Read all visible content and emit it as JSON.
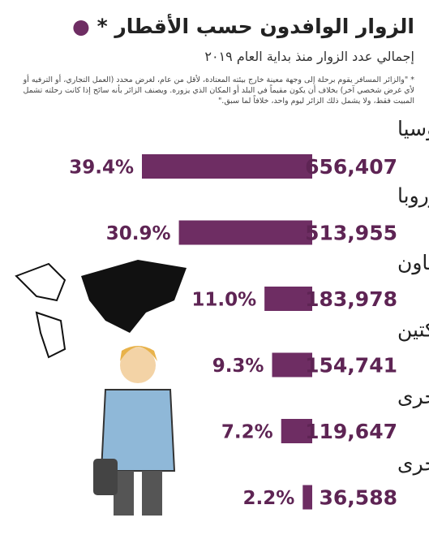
{
  "chart_data": {
    "type": "bar",
    "title": "الزوار الوافدون حسب الأقطار",
    "title_marker": "*",
    "subtitle": "إجمالي عدد الزوار منذ بداية العام ٢٠١٩",
    "footnote": "* \"والزائر المسافر يقوم برحلة إلى وجهة معينة خارج بيئته المعتادة، لأقل من عام، لغرض محدد (العمل التجاري، أو الترفيه أو لأي غرض شخصي آخر) بخلاف أن يكون مقيماً في البلد أو المكان الذي يزوره. ويصنف الزائر بأنه سائح إذا كانت رحلته تشمل المبيت فقط، ولا يشمل ذلك الزائر ليوم واحد، خلافاً لما سبق.\"",
    "categories": [
      "الدول الآسيوية الأخرى وأوقيانوسيا",
      "أوروبا",
      "دول مجلس التعاون",
      "الأمريكتين",
      "الدول العربية الأخرى",
      "الدول الأفريقية الأخرى"
    ],
    "values": [
      656407,
      513955,
      183978,
      154741,
      119647,
      36588
    ],
    "value_labels": [
      "656,407",
      "513,955",
      "183,978",
      "154,741",
      "119,647",
      "36,588"
    ],
    "shares": [
      39.4,
      30.9,
      11.0,
      9.3,
      7.2,
      2.2
    ],
    "share_labels": [
      "39.4%",
      "30.9%",
      "11.0%",
      "9.3%",
      "7.2%",
      "2.2%"
    ],
    "color": "#6e2d63"
  }
}
